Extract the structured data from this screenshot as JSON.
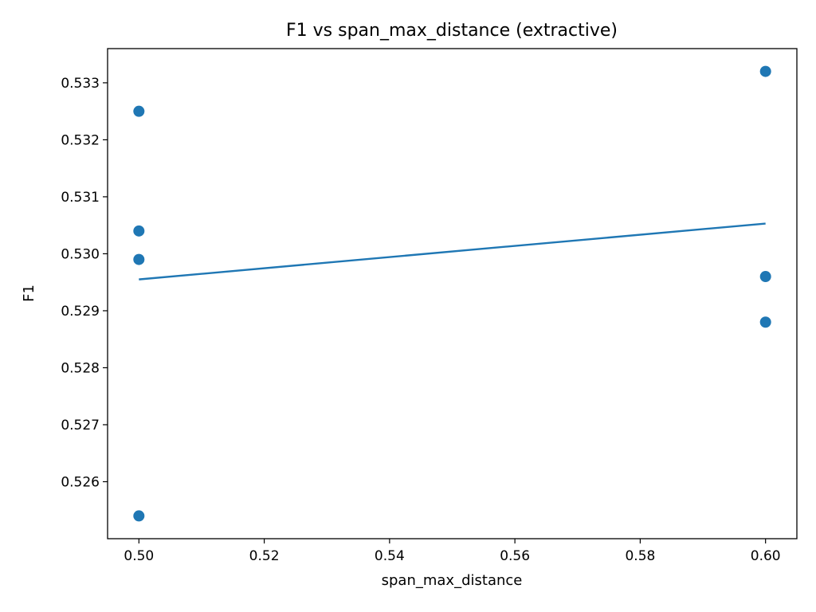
{
  "chart_data": {
    "type": "scatter",
    "title": "F1 vs span_max_distance (extractive)",
    "xlabel": "span_max_distance",
    "ylabel": "F1",
    "xlim": [
      0.495,
      0.605
    ],
    "ylim": [
      0.525,
      0.5336
    ],
    "xticks": [
      0.5,
      0.52,
      0.54,
      0.56,
      0.58,
      0.6
    ],
    "xtick_labels": [
      "0.50",
      "0.52",
      "0.54",
      "0.56",
      "0.58",
      "0.60"
    ],
    "yticks": [
      0.526,
      0.527,
      0.528,
      0.529,
      0.53,
      0.531,
      0.532,
      0.533
    ],
    "ytick_labels": [
      "0.526",
      "0.527",
      "0.528",
      "0.529",
      "0.530",
      "0.531",
      "0.532",
      "0.533"
    ],
    "grid": false,
    "series": [
      {
        "type": "scatter",
        "color": "#1f77b4",
        "points": [
          {
            "x": 0.5,
            "y": 0.5325
          },
          {
            "x": 0.5,
            "y": 0.5304
          },
          {
            "x": 0.5,
            "y": 0.5299
          },
          {
            "x": 0.5,
            "y": 0.5254
          },
          {
            "x": 0.6,
            "y": 0.5332
          },
          {
            "x": 0.6,
            "y": 0.5296
          },
          {
            "x": 0.6,
            "y": 0.5288
          }
        ]
      },
      {
        "type": "line",
        "color": "#1f77b4",
        "points": [
          {
            "x": 0.5,
            "y": 0.52955
          },
          {
            "x": 0.6,
            "y": 0.53053
          }
        ]
      }
    ]
  }
}
